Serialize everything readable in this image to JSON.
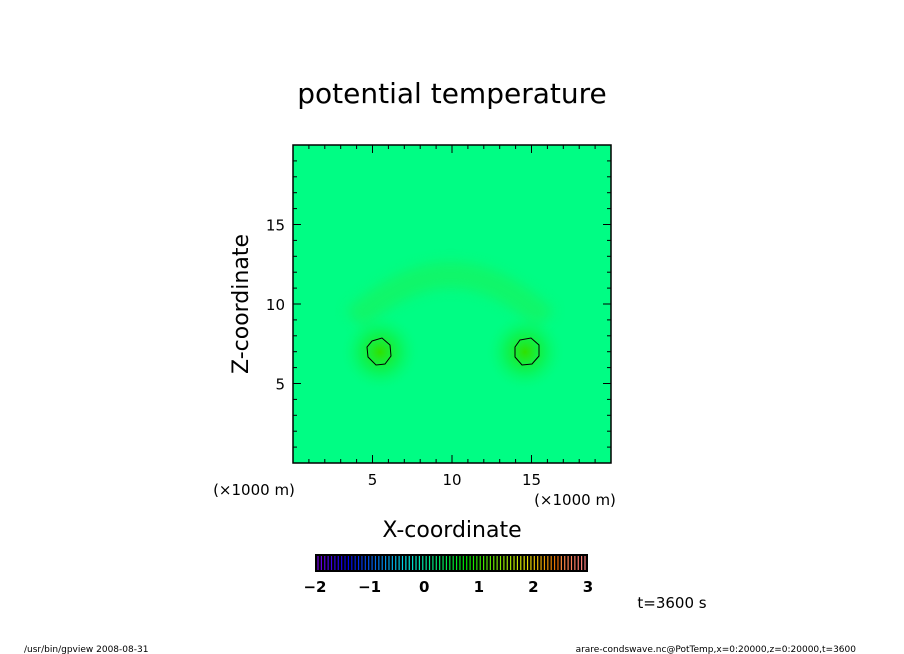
{
  "chart_data": {
    "type": "heatmap",
    "title": "potential temperature",
    "xlabel": "X-coordinate",
    "ylabel": "Z-coordinate",
    "x_unit": "(×1000 m)",
    "y_unit": "(×1000 m)",
    "xlim": [
      0,
      20
    ],
    "ylim": [
      0,
      20
    ],
    "xticks": [
      5,
      10,
      15
    ],
    "yticks": [
      5,
      10,
      15
    ],
    "background_value": 0,
    "features": [
      {
        "name": "left warm anomaly",
        "x": 5.5,
        "z": 7.0,
        "contour": true
      },
      {
        "name": "right warm anomaly",
        "x": 14.5,
        "z": 7.0,
        "contour": true
      },
      {
        "name": "arc",
        "x": 10,
        "z": 11
      }
    ],
    "colorbar": {
      "min": -2,
      "max": 3,
      "ticks": [
        "-2",
        "-1",
        "0",
        "1",
        "2",
        "3"
      ],
      "levels": 80
    }
  },
  "time_label": "t=3600 s",
  "footer_left": "/usr/bin/gpview   2008-08-31",
  "footer_right": "arare-condswave.nc@PotTemp,x=0:20000,z=0:20000,t=3600"
}
